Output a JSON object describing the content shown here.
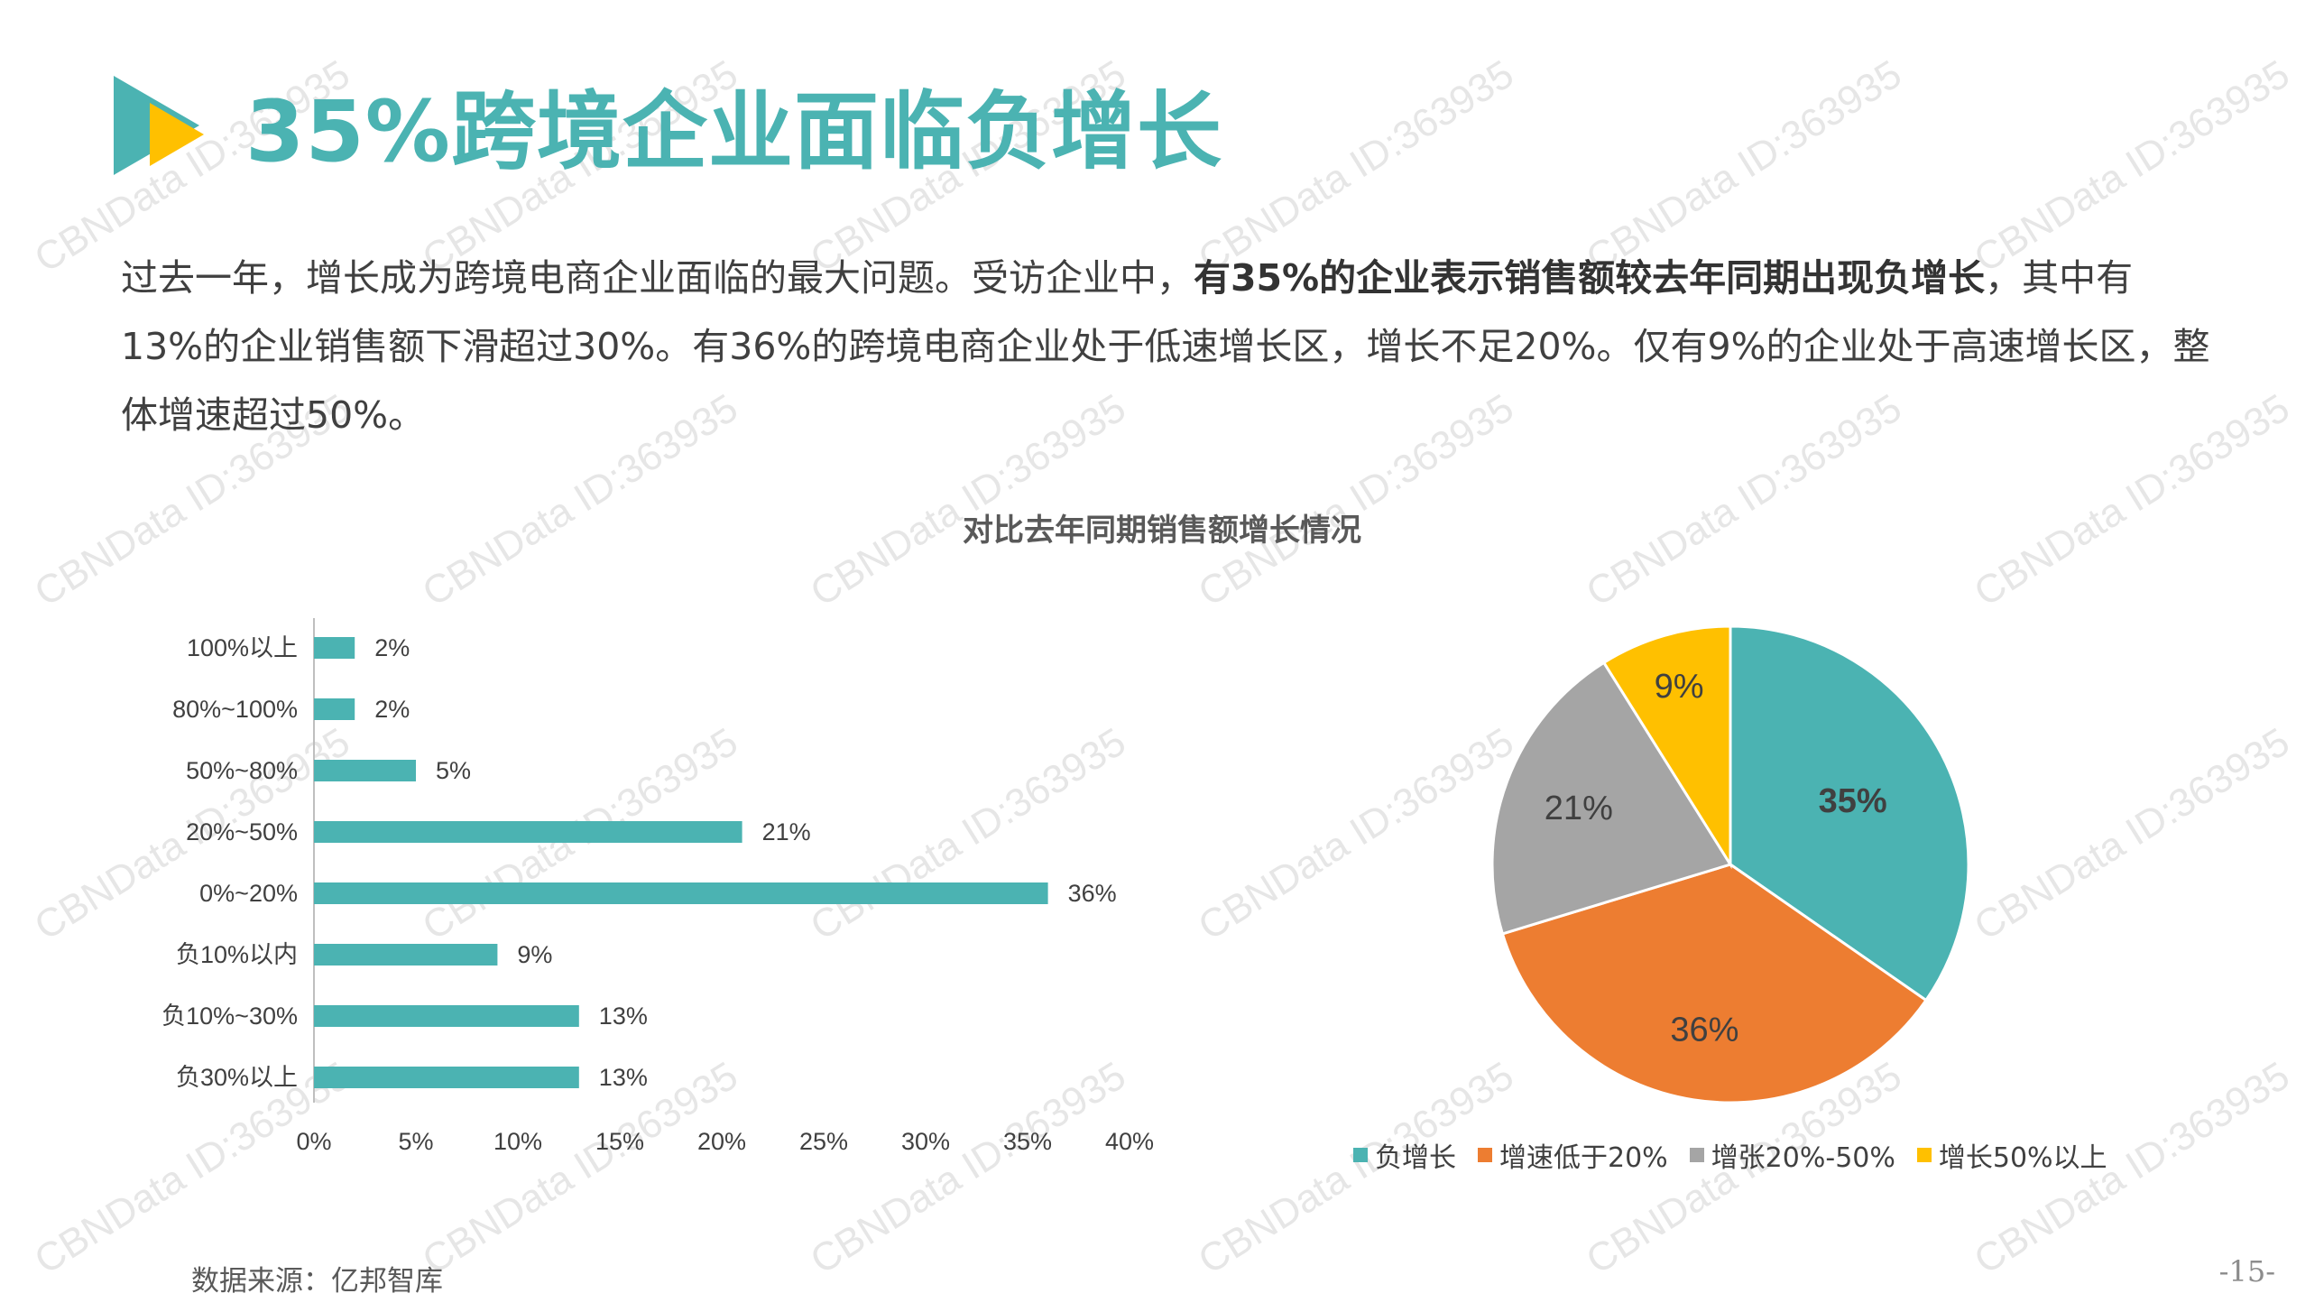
{
  "title": "35%跨境企业面临负增长",
  "paragraph": {
    "part1": "过去一年，增长成为跨境电商企业面临的最大问题。受访企业中，",
    "bold": "有35%的企业表示销售额较去年同期出现负增长",
    "part2": "，其中有13%的企业销售额下滑超过30%。有36%的跨境电商企业处于低速增长区，增长不足20%。仅有9%的企业处于高速增长区，整体增速超过50%。"
  },
  "watermark_text": "CBNData ID:363935",
  "source": "数据来源：亿邦智库",
  "page_number": "-15-",
  "colors": {
    "teal": "#4bb3b2",
    "orange": "#ed7d31",
    "gray": "#a5a5a5",
    "yellow": "#ffc000"
  },
  "chart_data": [
    {
      "type": "bar",
      "orientation": "horizontal",
      "title": "对比去年同期销售额增长情况",
      "categories": [
        "100%以上",
        "80%~100%",
        "50%~80%",
        "20%~50%",
        "0%~20%",
        "负10%以内",
        "负10%~30%",
        "负30%以上"
      ],
      "values": [
        2,
        2,
        5,
        21,
        36,
        9,
        13,
        13
      ],
      "value_labels": [
        "2%",
        "2%",
        "5%",
        "21%",
        "36%",
        "9%",
        "13%",
        "13%"
      ],
      "xlim": [
        0,
        40
      ],
      "xticks": [
        "0%",
        "5%",
        "10%",
        "15%",
        "20%",
        "25%",
        "30%",
        "35%",
        "40%"
      ],
      "color": "#4bb3b2",
      "grid": false
    },
    {
      "type": "pie",
      "slices": [
        {
          "name": "负增长",
          "value": 35,
          "label": "35%",
          "color": "#4bb3b2"
        },
        {
          "name": "增速低于20%",
          "value": 36,
          "label": "36%",
          "color": "#ed7d31"
        },
        {
          "name": "增张20%-50%",
          "value": 21,
          "label": "21%",
          "color": "#a5a5a5"
        },
        {
          "name": "增长50%以上",
          "value": 9,
          "label": "9%",
          "color": "#ffc000"
        }
      ],
      "legend_position": "bottom"
    }
  ]
}
